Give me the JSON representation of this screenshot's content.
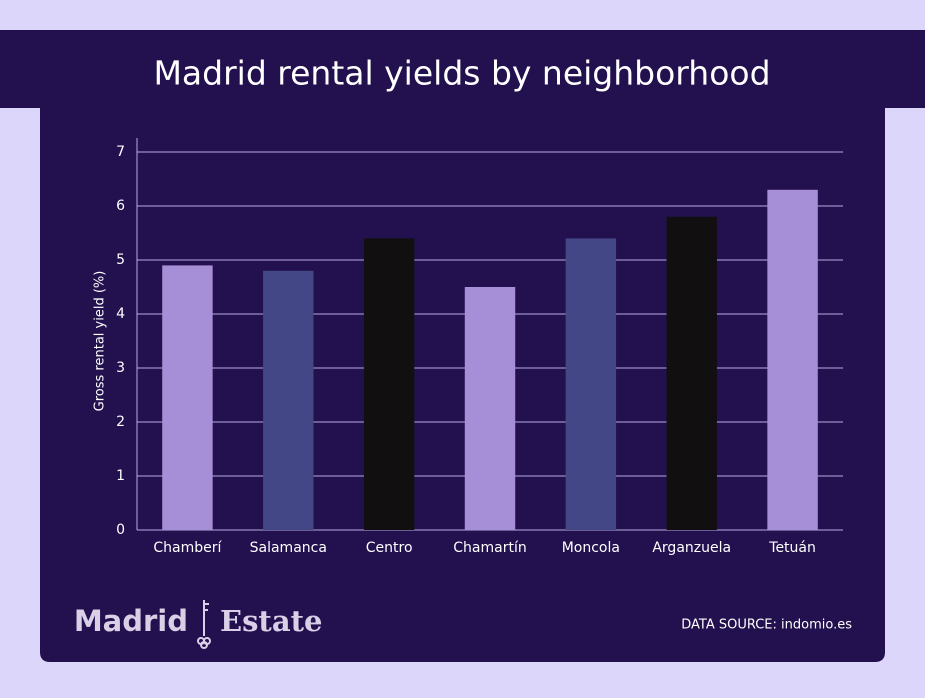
{
  "chart_data": {
    "type": "bar",
    "title": "Madrid rental yields by neighborhood",
    "y_label": "Gross rental yield (%)",
    "categories": [
      "Chamberí",
      "Salamanca",
      "Centro",
      "Chamartín",
      "Moncola",
      "Arganzuela",
      "Tetuán"
    ],
    "values": [
      4.9,
      4.8,
      5.4,
      4.5,
      5.4,
      5.8,
      6.3
    ],
    "colors": [
      "#a78fd8",
      "#434786",
      "#120f10",
      "#a78fd8",
      "#434786",
      "#120f10",
      "#a78fd8"
    ],
    "ylim": [
      0,
      7
    ],
    "yticks": [
      0,
      1,
      2,
      3,
      4,
      5,
      6,
      7
    ],
    "grid": true
  },
  "logo": {
    "left": "Madrid",
    "right": "Estate"
  },
  "source": "DATA SOURCE: indomio.es"
}
